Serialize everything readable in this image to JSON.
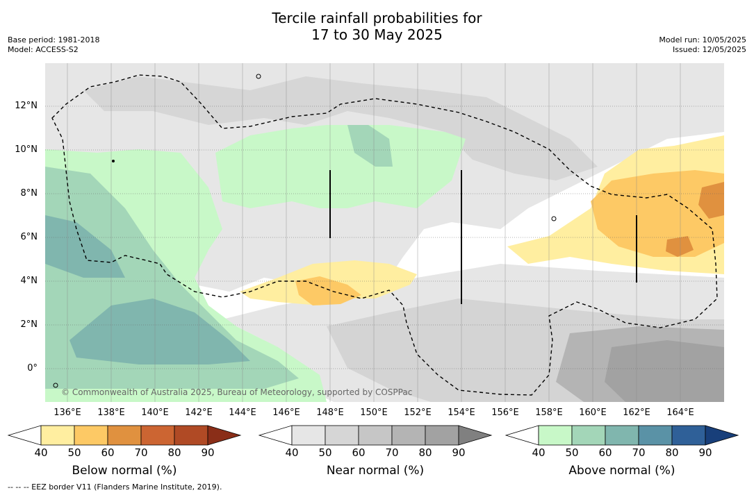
{
  "title_line1": "Tercile rainfall probabilities for",
  "title_line2": "17 to 30 May 2025",
  "base_period": "Base period: 1981-2018",
  "model": "Model: ACCESS-S2",
  "model_run": "Model run: 10/05/2025",
  "issued": "Issued: 12/05/2025",
  "lat_labels": [
    "12°N",
    "10°N",
    "8°N",
    "6°N",
    "4°N",
    "2°N",
    "0°"
  ],
  "lon_labels": [
    "136°E",
    "138°E",
    "140°E",
    "142°E",
    "144°E",
    "146°E",
    "148°E",
    "150°E",
    "152°E",
    "154°E",
    "156°E",
    "158°E",
    "160°E",
    "162°E",
    "164°E"
  ],
  "copyright": "© Commonwealth of Australia 2025, Bureau of Meteorology, supported by COSPPac",
  "colorbars": [
    {
      "title": "Below normal (%)",
      "ticks": [
        "40",
        "50",
        "60",
        "70",
        "80",
        "90"
      ],
      "colors": [
        "#ffffff",
        "#ffeea0",
        "#fdc965",
        "#e0913f",
        "#cc6532",
        "#b04a25",
        "#8a2e18"
      ]
    },
    {
      "title": "Near normal (%)",
      "ticks": [
        "40",
        "50",
        "60",
        "70",
        "80",
        "90"
      ],
      "colors": [
        "#ffffff",
        "#e6e6e6",
        "#d6d6d6",
        "#c6c6c6",
        "#b4b4b4",
        "#a2a2a2",
        "#808080"
      ]
    },
    {
      "title": "Above normal (%)",
      "ticks": [
        "40",
        "50",
        "60",
        "70",
        "80",
        "90"
      ],
      "colors": [
        "#ffffff",
        "#c8f8c8",
        "#a3d6b8",
        "#80b6ae",
        "#5a92a6",
        "#2f6098",
        "#183f7a"
      ]
    }
  ],
  "footer": "--  --  -- EEZ border V11 (Flanders Marine Institute, 2019)."
}
